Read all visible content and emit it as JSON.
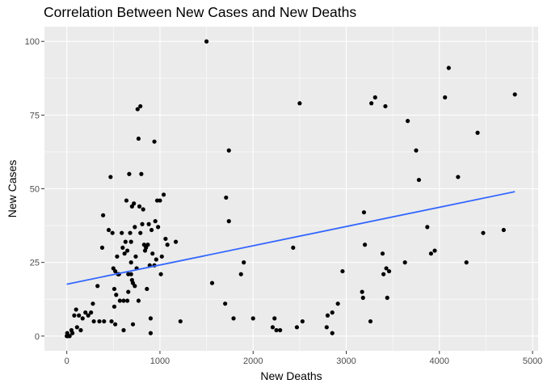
{
  "chart_data": {
    "type": "scatter",
    "title": "Correlation Between New Cases and New Deaths",
    "xlabel": "New Deaths",
    "ylabel": "New Cases",
    "xlim": [
      -240,
      5060
    ],
    "ylim": [
      -5,
      105
    ],
    "xticks": [
      0,
      1000,
      2000,
      3000,
      4000,
      5000
    ],
    "xtick_labels": [
      "0",
      "1000",
      "2000",
      "3000",
      "4000",
      "5000"
    ],
    "yticks": [
      0,
      25,
      50,
      75,
      100
    ],
    "ytick_labels": [
      "0",
      "25",
      "50",
      "75",
      "100"
    ],
    "grid": true,
    "panel_background": "#ebebeb",
    "grid_color": "#ffffff",
    "point_color": "#000000",
    "trend_color": "#3366ff",
    "trend_line": {
      "x": [
        0,
        4810
      ],
      "y": [
        17.6,
        49.0
      ]
    },
    "points": [
      [
        0,
        0
      ],
      [
        5,
        1
      ],
      [
        10,
        0
      ],
      [
        30,
        0
      ],
      [
        50,
        2
      ],
      [
        60,
        1
      ],
      [
        80,
        7
      ],
      [
        100,
        9
      ],
      [
        110,
        3
      ],
      [
        130,
        7
      ],
      [
        150,
        2
      ],
      [
        170,
        6
      ],
      [
        200,
        8
      ],
      [
        230,
        7
      ],
      [
        260,
        8
      ],
      [
        280,
        11
      ],
      [
        290,
        5
      ],
      [
        330,
        17
      ],
      [
        350,
        5
      ],
      [
        380,
        30
      ],
      [
        390,
        41
      ],
      [
        400,
        5
      ],
      [
        450,
        36
      ],
      [
        470,
        54
      ],
      [
        480,
        5
      ],
      [
        490,
        35
      ],
      [
        500,
        23
      ],
      [
        510,
        16
      ],
      [
        510,
        10
      ],
      [
        520,
        4
      ],
      [
        520,
        22
      ],
      [
        530,
        14
      ],
      [
        540,
        27
      ],
      [
        550,
        21
      ],
      [
        560,
        21
      ],
      [
        570,
        12
      ],
      [
        590,
        35
      ],
      [
        600,
        30
      ],
      [
        610,
        12
      ],
      [
        610,
        2
      ],
      [
        620,
        28
      ],
      [
        630,
        32
      ],
      [
        640,
        46
      ],
      [
        650,
        29
      ],
      [
        650,
        12
      ],
      [
        660,
        21
      ],
      [
        660,
        15
      ],
      [
        670,
        55
      ],
      [
        680,
        35
      ],
      [
        690,
        32
      ],
      [
        690,
        25
      ],
      [
        690,
        21
      ],
      [
        700,
        19
      ],
      [
        700,
        44
      ],
      [
        710,
        18
      ],
      [
        710,
        4
      ],
      [
        720,
        45
      ],
      [
        730,
        37
      ],
      [
        730,
        17
      ],
      [
        740,
        27
      ],
      [
        750,
        23
      ],
      [
        760,
        77
      ],
      [
        770,
        67
      ],
      [
        770,
        12
      ],
      [
        780,
        44
      ],
      [
        790,
        78
      ],
      [
        790,
        35
      ],
      [
        800,
        55
      ],
      [
        810,
        38
      ],
      [
        820,
        43
      ],
      [
        830,
        31
      ],
      [
        840,
        29
      ],
      [
        850,
        30
      ],
      [
        860,
        16
      ],
      [
        870,
        31
      ],
      [
        880,
        38
      ],
      [
        890,
        24
      ],
      [
        900,
        6
      ],
      [
        900,
        1
      ],
      [
        910,
        36
      ],
      [
        920,
        28
      ],
      [
        940,
        66
      ],
      [
        940,
        24
      ],
      [
        950,
        39
      ],
      [
        960,
        26
      ],
      [
        970,
        46
      ],
      [
        980,
        37
      ],
      [
        1000,
        46
      ],
      [
        1010,
        21
      ],
      [
        1020,
        27
      ],
      [
        1040,
        48
      ],
      [
        1060,
        33
      ],
      [
        1080,
        31
      ],
      [
        1170,
        32
      ],
      [
        1220,
        5
      ],
      [
        1500,
        100
      ],
      [
        1560,
        18
      ],
      [
        1700,
        11
      ],
      [
        1710,
        47
      ],
      [
        1740,
        39
      ],
      [
        1740,
        63
      ],
      [
        1790,
        6
      ],
      [
        1870,
        21
      ],
      [
        1900,
        25
      ],
      [
        2000,
        6
      ],
      [
        2210,
        3
      ],
      [
        2230,
        6
      ],
      [
        2250,
        2
      ],
      [
        2290,
        2
      ],
      [
        2430,
        30
      ],
      [
        2470,
        3
      ],
      [
        2500,
        79
      ],
      [
        2530,
        5
      ],
      [
        2790,
        3
      ],
      [
        2800,
        7
      ],
      [
        2850,
        8
      ],
      [
        2850,
        1
      ],
      [
        2910,
        11
      ],
      [
        2960,
        22
      ],
      [
        3170,
        15
      ],
      [
        3180,
        13
      ],
      [
        3190,
        42
      ],
      [
        3200,
        31
      ],
      [
        3260,
        5
      ],
      [
        3270,
        79
      ],
      [
        3310,
        81
      ],
      [
        3390,
        28
      ],
      [
        3400,
        21
      ],
      [
        3420,
        78
      ],
      [
        3430,
        23
      ],
      [
        3440,
        13
      ],
      [
        3460,
        22
      ],
      [
        3630,
        25
      ],
      [
        3660,
        73
      ],
      [
        3750,
        63
      ],
      [
        3780,
        53
      ],
      [
        3870,
        37
      ],
      [
        3910,
        28
      ],
      [
        3950,
        29
      ],
      [
        4060,
        81
      ],
      [
        4100,
        91
      ],
      [
        4200,
        54
      ],
      [
        4290,
        25
      ],
      [
        4410,
        69
      ],
      [
        4470,
        35
      ],
      [
        4690,
        36
      ],
      [
        4810,
        82
      ]
    ]
  }
}
